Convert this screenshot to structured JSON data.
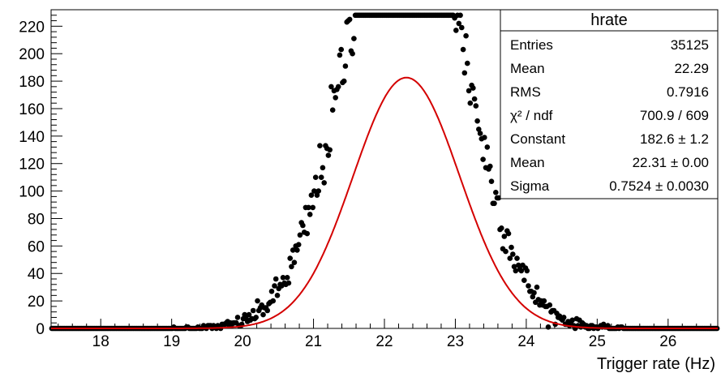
{
  "chart_data": {
    "type": "scatter",
    "title": "",
    "xlabel": "Trigger rate (Hz)",
    "ylabel": "",
    "xlim": [
      17.3,
      26.7
    ],
    "ylim": [
      0,
      232
    ],
    "x_ticks": [
      "18",
      "19",
      "20",
      "21",
      "22",
      "23",
      "24",
      "25",
      "26"
    ],
    "y_ticks": [
      "0",
      "20",
      "40",
      "60",
      "80",
      "100",
      "120",
      "140",
      "160",
      "180",
      "200",
      "220"
    ],
    "grid": false,
    "series": [
      {
        "kind": "histogram_points",
        "bin_width": 0.02,
        "x_range": [
          17.3,
          26.7
        ],
        "gaussian_mean": 22.29,
        "gaussian_sigma": 0.7916,
        "entries": 35125,
        "marker_color": "#000000"
      },
      {
        "kind": "fit_curve",
        "function": "gaus",
        "constant": 182.6,
        "mean": 22.31,
        "sigma": 0.7524,
        "color": "#d40000"
      }
    ],
    "stats_box": {
      "title": "hrate",
      "placement": "top-right",
      "rows": [
        {
          "label": "Entries",
          "value": "35125"
        },
        {
          "label": "Mean",
          "value": "22.29"
        },
        {
          "label": "RMS",
          "value": "0.7916"
        },
        {
          "label": "χ² / ndf",
          "value": "700.9 / 609"
        },
        {
          "label": "Constant",
          "value": "182.6 ± 1.2"
        },
        {
          "label": "Mean",
          "value": "22.31 ± 0.00"
        },
        {
          "label": "Sigma",
          "value": "0.7524 ± 0.0030"
        }
      ]
    }
  }
}
